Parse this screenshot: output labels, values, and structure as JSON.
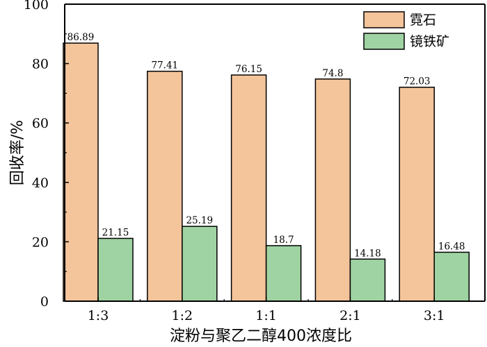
{
  "chart_data": {
    "type": "bar",
    "categories": [
      "1:3",
      "1:2",
      "1:1",
      "2:1",
      "3:1"
    ],
    "series": [
      {
        "name": "霓石",
        "color": "#f4c49b",
        "values": [
          86.89,
          77.41,
          76.15,
          74.8,
          72.03
        ],
        "labels": [
          "86.89",
          "77.41",
          "76.15",
          "74.8",
          "72.03"
        ]
      },
      {
        "name": "镜铁矿",
        "color": "#9fd3a3",
        "values": [
          21.15,
          25.19,
          18.7,
          14.18,
          16.48
        ],
        "labels": [
          "21.15",
          "25.19",
          "18.7",
          "14.18",
          "16.48"
        ]
      }
    ],
    "xlabel": "淀粉与聚乙二醇400浓度比",
    "ylabel": "回收率/%",
    "ylim": [
      0,
      100
    ],
    "yticks": [
      0,
      20,
      40,
      60,
      80,
      100
    ],
    "grid": false,
    "legend_position": "top-right"
  }
}
